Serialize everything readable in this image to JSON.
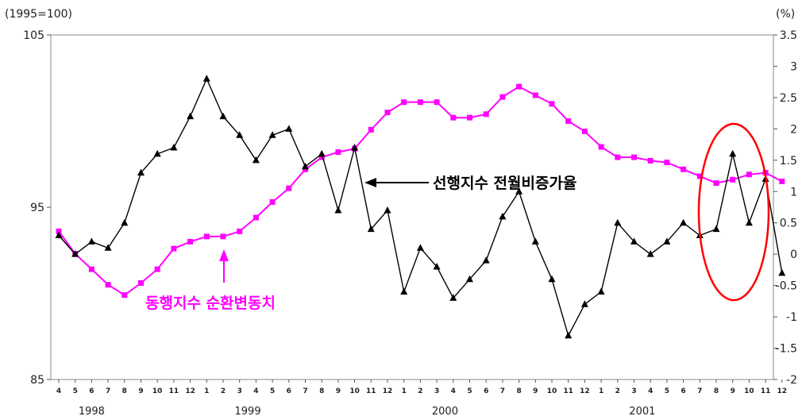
{
  "chart_data": {
    "type": "line",
    "left_unit": "(1995=100)",
    "right_unit": "(%)",
    "left_axis": {
      "ylim": [
        85,
        105
      ],
      "ticks": [
        "105",
        "95",
        "85"
      ]
    },
    "right_axis": {
      "ylim": [
        -2,
        3.5
      ],
      "ticks": [
        "3.5",
        "3",
        "2.5",
        "2",
        "1.5",
        "1",
        "0.5",
        "0",
        "-0.5",
        "-1",
        "-1.5",
        "-2"
      ]
    },
    "x_months": [
      "4",
      "5",
      "6",
      "7",
      "8",
      "9",
      "10",
      "11",
      "12",
      "1",
      "2",
      "3",
      "4",
      "5",
      "6",
      "7",
      "8",
      "9",
      "10",
      "11",
      "12",
      "1",
      "2",
      "3",
      "4",
      "5",
      "6",
      "7",
      "8",
      "9",
      "10",
      "11",
      "12",
      "1",
      "2",
      "3",
      "4",
      "5",
      "6",
      "7",
      "8",
      "9",
      "10",
      "11",
      "12"
    ],
    "x_years": [
      {
        "label": "1998",
        "index": 2
      },
      {
        "label": "1999",
        "index": 11.5
      },
      {
        "label": "2000",
        "index": 23.5
      },
      {
        "label": "2001",
        "index": 35.5
      }
    ],
    "series": [
      {
        "name": "동행지수 순환변동치",
        "axis": "left",
        "color": "#ff00ff",
        "marker": "square",
        "values": [
          93.6,
          92.3,
          91.4,
          90.5,
          89.9,
          90.6,
          91.4,
          92.6,
          93.0,
          93.3,
          93.3,
          93.6,
          94.4,
          95.3,
          96.1,
          97.2,
          97.9,
          98.2,
          98.4,
          99.5,
          100.5,
          101.1,
          101.1,
          101.1,
          100.2,
          100.2,
          100.4,
          101.4,
          102.0,
          101.5,
          101.0,
          100.0,
          99.4,
          98.5,
          97.9,
          97.9,
          97.7,
          97.6,
          97.2,
          96.8,
          96.4,
          96.6,
          96.9,
          97.0,
          96.5
        ]
      },
      {
        "name": "선행지수 전월비증가율",
        "axis": "right",
        "color": "#000000",
        "marker": "triangle",
        "values": [
          0.3,
          0.0,
          0.2,
          0.1,
          0.5,
          1.3,
          1.6,
          1.7,
          2.2,
          2.8,
          2.2,
          1.9,
          1.5,
          1.9,
          2.0,
          1.4,
          1.6,
          0.7,
          1.7,
          0.4,
          0.7,
          -0.6,
          0.1,
          -0.2,
          -0.7,
          -0.4,
          -0.1,
          0.6,
          1.0,
          0.2,
          -0.4,
          -1.3,
          -0.8,
          -0.6,
          0.5,
          0.2,
          0.0,
          0.2,
          0.5,
          0.3,
          0.4,
          1.6,
          0.5,
          1.2,
          -0.3
        ]
      }
    ],
    "annotations": [
      {
        "text": "선행지수 전월비증가율",
        "color": "#000000",
        "series": "선행지수 전월비증가율"
      },
      {
        "text": "동행지수 순환변동치",
        "color": "#ff00ff",
        "series": "동행지수 순환변동치"
      }
    ],
    "highlight": {
      "shape": "ellipse",
      "color": "#ff0000",
      "from_index": 41,
      "to_index": 44
    }
  }
}
